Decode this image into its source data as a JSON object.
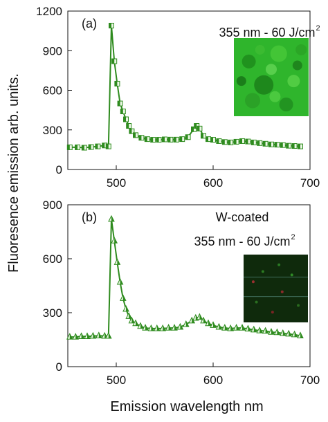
{
  "colors": {
    "series": "#2e8b1e",
    "marker_light": "#eaf7e4",
    "inset_bright": "#2fb52c",
    "inset_dark": "#0f2a0c"
  },
  "chart_data": [
    {
      "type": "line",
      "panel_label": "(a)",
      "annotation_lines": [
        "355 nm - 60 J/cm"
      ],
      "annotation_sup": "2",
      "inset_image": "bright green fluorescence micrograph",
      "marker": "half-filled square",
      "xlim": [
        450,
        700
      ],
      "ylim": [
        0,
        1200
      ],
      "xticks": [
        "500",
        "600",
        "700"
      ],
      "yticks": [
        "0",
        "300",
        "600",
        "900",
        "1200"
      ],
      "x": [
        452,
        460,
        467,
        474,
        481,
        488,
        492,
        495,
        498,
        501,
        504,
        507,
        510,
        513,
        516,
        520,
        526,
        532,
        538,
        544,
        550,
        556,
        562,
        568,
        574,
        580,
        583,
        586,
        590,
        595,
        600,
        606,
        612,
        618,
        624,
        630,
        636,
        642,
        648,
        654,
        660,
        666,
        672,
        678,
        684,
        690
      ],
      "values": [
        168,
        168,
        165,
        170,
        175,
        182,
        175,
        1090,
        820,
        650,
        500,
        440,
        380,
        330,
        290,
        260,
        240,
        230,
        225,
        225,
        228,
        226,
        226,
        230,
        245,
        305,
        330,
        310,
        255,
        230,
        225,
        215,
        208,
        205,
        210,
        215,
        212,
        205,
        200,
        195,
        190,
        188,
        185,
        180,
        178,
        175
      ]
    },
    {
      "type": "line",
      "panel_label": "(b)",
      "annotation_lines": [
        "W-coated",
        "355 nm - 60 J/cm"
      ],
      "annotation_sup": "2",
      "inset_image": "dark micrograph with faint green and red specks",
      "marker": "half-filled triangle",
      "xlim": [
        450,
        700
      ],
      "ylim": [
        0,
        900
      ],
      "xticks": [
        "500",
        "600",
        "700"
      ],
      "yticks": [
        "0",
        "300",
        "600",
        "900"
      ],
      "x": [
        452,
        458,
        464,
        470,
        476,
        482,
        488,
        492,
        495,
        498,
        501,
        504,
        507,
        510,
        513,
        516,
        520,
        525,
        530,
        536,
        542,
        548,
        554,
        560,
        566,
        572,
        578,
        582,
        586,
        590,
        595,
        600,
        606,
        612,
        618,
        624,
        630,
        636,
        642,
        648,
        654,
        660,
        666,
        672,
        678,
        684,
        690
      ],
      "values": [
        165,
        165,
        168,
        168,
        170,
        172,
        170,
        170,
        820,
        700,
        580,
        470,
        380,
        320,
        280,
        255,
        240,
        225,
        215,
        212,
        212,
        212,
        215,
        215,
        220,
        235,
        255,
        270,
        275,
        255,
        240,
        230,
        220,
        215,
        212,
        215,
        215,
        210,
        205,
        200,
        198,
        192,
        190,
        185,
        182,
        178,
        172
      ]
    }
  ],
  "axes": {
    "ylabel": "Fluoresence emission arb. units.",
    "xlabel": "Emission wavelength nm"
  }
}
